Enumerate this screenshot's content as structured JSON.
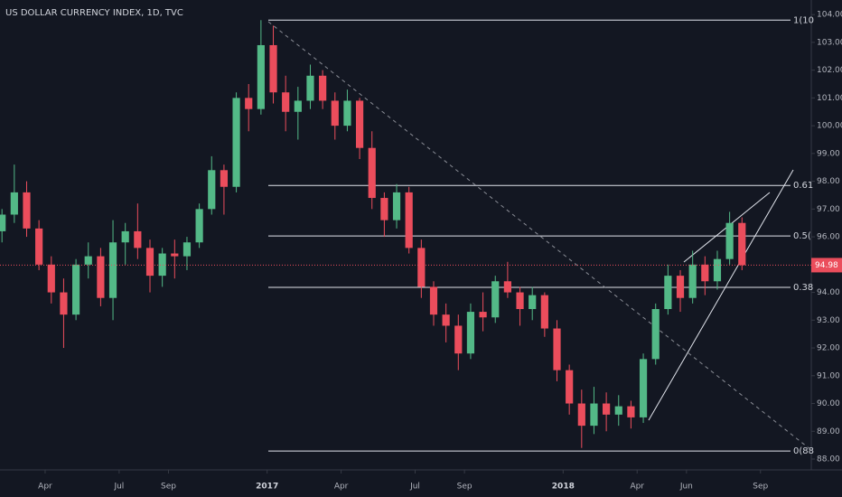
{
  "chart_data": {
    "type": "candlestick",
    "title": "US DOLLAR CURRENCY INDEX, 1D, TVC",
    "x": [
      1.25,
      1.75,
      2.25,
      2.75,
      3.25,
      3.75,
      4.25,
      4.75,
      5.25,
      5.75,
      6.25,
      6.75,
      7.25,
      7.75,
      8.25,
      8.75,
      9.25,
      9.75,
      10.25,
      10.75,
      11.25,
      11.75,
      12.25,
      12.75,
      13.25,
      13.75,
      14.25,
      14.75,
      15.25,
      15.75,
      16.25,
      16.75,
      17.25,
      17.75,
      18.25,
      18.75,
      19.25,
      19.75,
      20.25,
      20.75,
      21.25,
      21.75,
      22.25,
      22.75,
      23.25,
      23.75,
      24.25,
      24.75,
      25.25,
      25.75,
      26.25,
      26.75,
      27.25,
      27.75,
      28.25,
      28.75,
      29.25,
      29.75,
      30.25,
      30.75,
      31.25
    ],
    "open": [
      96.2,
      96.8,
      97.6,
      96.3,
      95.0,
      94.0,
      93.2,
      95.0,
      95.3,
      93.8,
      95.8,
      96.2,
      95.6,
      94.6,
      95.4,
      95.3,
      95.8,
      97.0,
      98.4,
      97.8,
      101.0,
      100.6,
      102.9,
      101.2,
      100.5,
      100.9,
      101.8,
      100.9,
      100.0,
      100.9,
      99.2,
      97.4,
      96.6,
      97.6,
      95.6,
      94.2,
      93.2,
      92.8,
      91.8,
      93.3,
      93.1,
      94.4,
      94.0,
      93.4,
      93.9,
      92.7,
      91.2,
      90.0,
      89.2,
      90.0,
      89.6,
      89.9,
      89.5,
      91.6,
      93.4,
      94.6,
      93.8,
      95.0,
      94.4,
      95.2,
      96.5
    ],
    "high": [
      97.0,
      98.6,
      98.0,
      96.6,
      95.3,
      94.5,
      95.2,
      95.8,
      95.6,
      96.6,
      96.5,
      97.2,
      95.9,
      95.6,
      95.9,
      96.0,
      97.2,
      98.9,
      98.6,
      101.2,
      101.5,
      103.8,
      103.6,
      101.8,
      101.4,
      102.2,
      102.0,
      101.2,
      101.3,
      101.0,
      99.8,
      97.6,
      97.9,
      97.8,
      95.9,
      94.4,
      93.6,
      93.2,
      93.6,
      94.0,
      94.6,
      95.1,
      94.2,
      94.2,
      94.0,
      93.0,
      91.4,
      90.5,
      90.6,
      90.4,
      90.3,
      90.1,
      91.8,
      93.6,
      95.0,
      94.8,
      95.5,
      95.3,
      95.5,
      96.9,
      96.7
    ],
    "low": [
      95.8,
      96.5,
      96.0,
      94.8,
      93.6,
      92.0,
      93.0,
      94.5,
      93.5,
      93.0,
      95.0,
      95.2,
      94.0,
      94.2,
      94.5,
      94.8,
      95.6,
      96.8,
      96.8,
      97.6,
      99.8,
      100.4,
      100.8,
      99.8,
      99.5,
      100.6,
      100.6,
      99.5,
      99.8,
      98.8,
      97.0,
      96.0,
      96.3,
      95.4,
      93.8,
      92.8,
      92.2,
      91.2,
      91.6,
      92.6,
      92.9,
      93.8,
      92.8,
      93.0,
      92.4,
      90.8,
      89.6,
      88.4,
      88.9,
      89.0,
      89.2,
      89.1,
      89.3,
      91.4,
      93.2,
      93.3,
      93.6,
      93.9,
      94.1,
      95.0,
      94.8
    ],
    "close": [
      96.8,
      97.6,
      96.3,
      95.0,
      94.0,
      93.2,
      95.0,
      95.3,
      93.8,
      95.8,
      96.2,
      95.6,
      94.6,
      95.4,
      95.3,
      95.8,
      97.0,
      98.4,
      97.8,
      101.0,
      100.6,
      102.9,
      101.2,
      100.5,
      100.9,
      101.8,
      100.9,
      100.0,
      100.9,
      99.2,
      97.4,
      96.6,
      97.6,
      95.6,
      94.2,
      93.2,
      92.8,
      91.8,
      93.3,
      93.1,
      94.4,
      94.0,
      93.4,
      93.9,
      92.7,
      91.2,
      90.0,
      89.2,
      90.0,
      89.6,
      89.9,
      89.5,
      91.6,
      93.4,
      94.6,
      93.8,
      95.0,
      94.4,
      95.2,
      96.5,
      94.98
    ],
    "up_color": "#53b987",
    "down_color": "#eb4d5c",
    "last_price": 94.98,
    "fib_levels": [
      {
        "value": 103.8,
        "label": "1(10"
      },
      {
        "value": 97.85,
        "label": "0.61"
      },
      {
        "value": 96.03,
        "label": "0.5("
      },
      {
        "value": 94.18,
        "label": "0.38"
      },
      {
        "value": 88.29,
        "label": "0(88"
      }
    ],
    "xlim": [
      1.17,
      34.06
    ],
    "ylim": [
      87.61,
      104.2
    ],
    "xticks": [
      {
        "value": 3,
        "label": "Apr"
      },
      {
        "value": 6,
        "label": "Jul"
      },
      {
        "value": 8,
        "label": "Sep"
      },
      {
        "value": 12,
        "label": "2017"
      },
      {
        "value": 15,
        "label": "Apr"
      },
      {
        "value": 18,
        "label": "Jul"
      },
      {
        "value": 20,
        "label": "Sep"
      },
      {
        "value": 24,
        "label": "2018"
      },
      {
        "value": 27,
        "label": "Apr"
      },
      {
        "value": 29,
        "label": "Jun"
      },
      {
        "value": 32,
        "label": "Sep"
      }
    ],
    "yticks": [
      {
        "value": 88,
        "label": "88.00"
      },
      {
        "value": 89,
        "label": "89.00"
      },
      {
        "value": 90,
        "label": "90.00"
      },
      {
        "value": 91,
        "label": "91.00"
      },
      {
        "value": 92,
        "label": "92.00"
      },
      {
        "value": 93,
        "label": "93.00"
      },
      {
        "value": 94,
        "label": "94.00"
      },
      {
        "value": 95,
        "label": "95.00"
      },
      {
        "value": 96,
        "label": "96.00"
      },
      {
        "value": 97,
        "label": "97.00"
      },
      {
        "value": 98,
        "label": "98.00"
      },
      {
        "value": 99,
        "label": "99.00"
      },
      {
        "value": 100,
        "label": "100.00"
      },
      {
        "value": 101,
        "label": "101.00"
      },
      {
        "value": 102,
        "label": "102.00"
      },
      {
        "value": 103,
        "label": "103.00"
      },
      {
        "value": 104,
        "label": "104.00"
      }
    ]
  }
}
